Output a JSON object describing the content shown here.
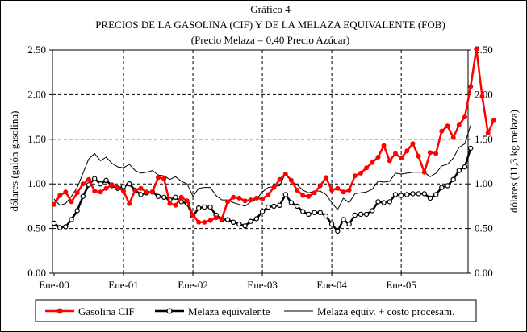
{
  "chart_data": {
    "type": "line",
    "label": "Gráfico 4",
    "title": "PRECIOS DE LA GASOLINA (CIF) Y DE LA MELAZA EQUIVALENTE (FOB)",
    "subtitle": "(Precio Melaza = 0,40 Precio Azúcar)",
    "ylabel": "dólares  (galón gasolina)",
    "ylabel_right": "dólares  (11,3 kg melaza)",
    "ylim": [
      0,
      2.5
    ],
    "yticks": [
      "0.00",
      "0.50",
      "1.00",
      "1.50",
      "2.00",
      "2.50"
    ],
    "xlim": [
      0,
      71
    ],
    "xticks": [
      {
        "label": "Ene-00",
        "x": 0
      },
      {
        "label": "Ene-01",
        "x": 12
      },
      {
        "label": "Ene-02",
        "x": 24
      },
      {
        "label": "Ene-03",
        "x": 36
      },
      {
        "label": "Ene-04",
        "x": 48
      },
      {
        "label": "Ene-05",
        "x": 60
      }
    ],
    "grid": true,
    "legend_position": "bottom",
    "series": [
      {
        "name": "Gasolina CIF",
        "color": "#ff0000",
        "marker": "filled-circle",
        "values": [
          0.77,
          0.87,
          0.91,
          0.8,
          0.9,
          1.0,
          1.05,
          0.92,
          0.91,
          0.95,
          0.99,
          0.96,
          0.92,
          0.78,
          0.93,
          0.95,
          0.91,
          0.91,
          1.07,
          1.06,
          0.78,
          0.76,
          0.85,
          0.81,
          0.65,
          0.57,
          0.57,
          0.59,
          0.62,
          0.61,
          0.8,
          0.85,
          0.84,
          0.81,
          0.82,
          0.84,
          0.83,
          0.88,
          0.96,
          1.05,
          1.11,
          1.04,
          0.93,
          0.87,
          0.86,
          0.9,
          0.98,
          1.07,
          0.93,
          0.95,
          0.91,
          0.93,
          1.09,
          1.12,
          1.18,
          1.24,
          1.3,
          1.43,
          1.26,
          1.34,
          1.29,
          1.37,
          1.45,
          1.31,
          1.13,
          1.35,
          1.34,
          1.59,
          1.65,
          1.52,
          1.66,
          1.75,
          2.09,
          2.51,
          1.98,
          1.57,
          1.71
        ]
      },
      {
        "name": "Melaza equivalente",
        "color": "#000000",
        "marker": "hollow-circle",
        "values": [
          0.56,
          0.51,
          0.52,
          0.6,
          0.7,
          0.86,
          0.99,
          1.06,
          1.0,
          1.04,
          0.98,
          0.95,
          0.97,
          1.0,
          0.93,
          0.88,
          0.9,
          0.91,
          0.86,
          0.85,
          0.82,
          0.85,
          0.8,
          0.78,
          0.64,
          0.73,
          0.74,
          0.74,
          0.65,
          0.6,
          0.6,
          0.57,
          0.55,
          0.53,
          0.58,
          0.61,
          0.69,
          0.74,
          0.75,
          0.76,
          0.88,
          0.79,
          0.75,
          0.69,
          0.66,
          0.68,
          0.68,
          0.64,
          0.55,
          0.47,
          0.6,
          0.55,
          0.65,
          0.66,
          0.66,
          0.7,
          0.8,
          0.79,
          0.8,
          0.88,
          0.87,
          0.88,
          0.89,
          0.89,
          0.89,
          0.84,
          0.88,
          0.96,
          0.98,
          1.05,
          1.15,
          1.19,
          1.4
        ]
      },
      {
        "name": "Melaza equiv. + costo procesam.",
        "color": "#000000",
        "marker": "none",
        "values": [
          0.83,
          0.76,
          0.78,
          0.86,
          0.96,
          1.12,
          1.28,
          1.34,
          1.26,
          1.3,
          1.23,
          1.19,
          1.18,
          1.22,
          1.15,
          1.12,
          1.13,
          1.15,
          1.1,
          1.09,
          1.05,
          1.08,
          1.03,
          1.0,
          0.86,
          0.95,
          0.96,
          0.96,
          0.87,
          0.82,
          0.82,
          0.79,
          0.77,
          0.75,
          0.8,
          0.83,
          0.91,
          0.96,
          0.97,
          0.98,
          1.12,
          1.03,
          0.99,
          0.93,
          0.9,
          0.92,
          0.92,
          0.88,
          0.79,
          0.71,
          0.84,
          0.79,
          0.89,
          0.9,
          0.91,
          0.94,
          1.03,
          1.02,
          1.03,
          1.12,
          1.11,
          1.12,
          1.13,
          1.13,
          1.13,
          1.08,
          1.12,
          1.2,
          1.22,
          1.29,
          1.41,
          1.45,
          1.66
        ]
      }
    ]
  }
}
